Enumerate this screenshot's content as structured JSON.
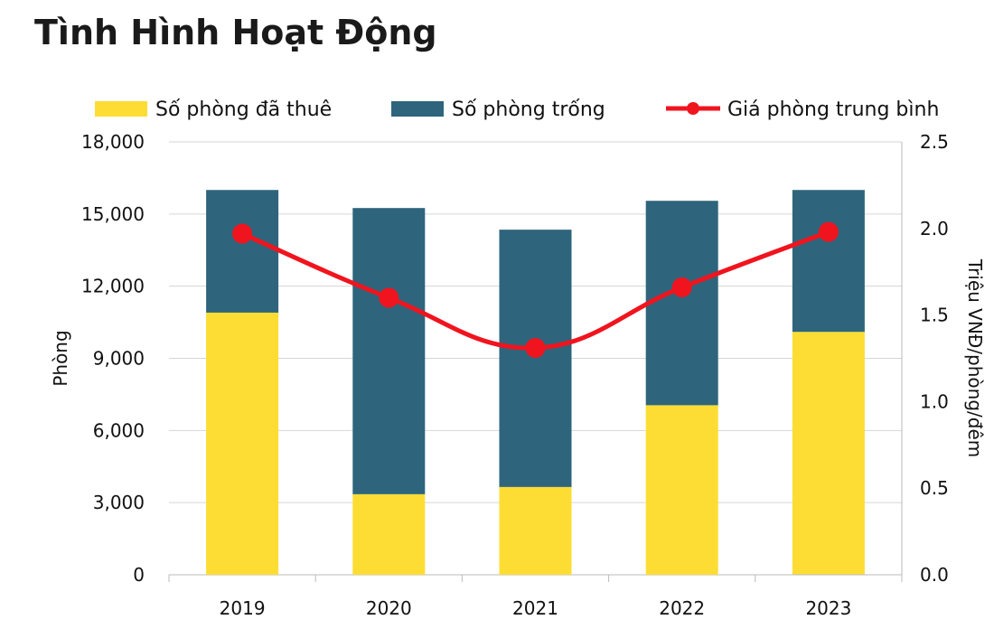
{
  "chart_data": {
    "type": "bar",
    "title": "Tình Hình Hoạt Động",
    "categories": [
      "2019",
      "2020",
      "2021",
      "2022",
      "2023"
    ],
    "stacked": true,
    "series": [
      {
        "name": "Số phòng đã thuê",
        "type": "bar",
        "axis": "left",
        "color": "#FDDD33",
        "values": [
          10900,
          3350,
          3650,
          7050,
          10100
        ]
      },
      {
        "name": "Số phòng trống",
        "type": "bar",
        "axis": "left",
        "color": "#2E657C",
        "values": [
          5100,
          11900,
          10700,
          8500,
          5900
        ]
      },
      {
        "name": "Giá phòng trung bình",
        "type": "line",
        "axis": "right",
        "color": "#F0141E",
        "smooth": true,
        "values": [
          1.97,
          1.6,
          1.31,
          1.66,
          1.98
        ]
      }
    ],
    "ylabel": "Phòng",
    "ylim": [
      0,
      18000
    ],
    "yticks": [
      "0",
      "3,000",
      "6,000",
      "9,000",
      "12,000",
      "15,000",
      "18,000"
    ],
    "y2label": "Triệu VNĐ/phòng/đêm",
    "y2lim": [
      0,
      2.5
    ],
    "y2ticks": [
      "0.0",
      "0.5",
      "1.0",
      "1.5",
      "2.0",
      "2.5"
    ],
    "grid": true,
    "legend": "top"
  }
}
